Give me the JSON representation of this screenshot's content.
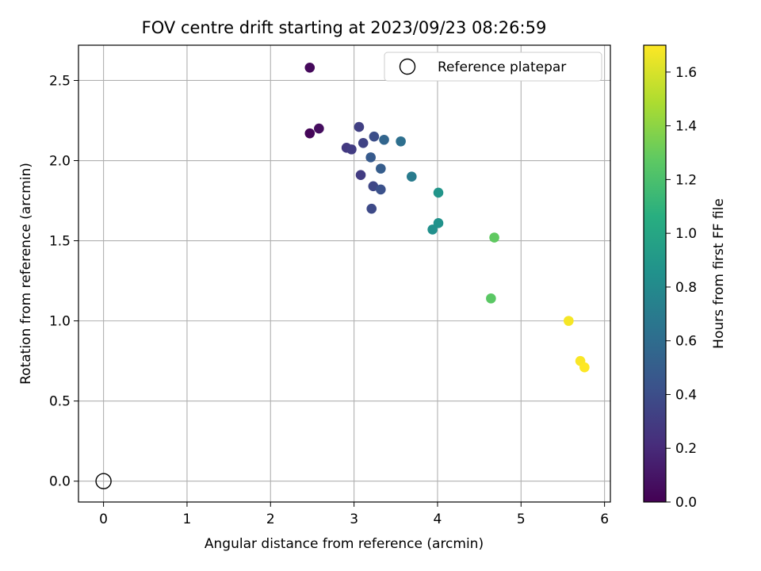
{
  "chart_data": {
    "type": "scatter",
    "title": "FOV centre drift starting at 2023/09/23 08:26:59",
    "xlabel": "Angular distance from reference (arcmin)",
    "ylabel": "Rotation from reference (arcmin)",
    "xlim": [
      -0.3,
      6.07
    ],
    "ylim": [
      -0.13,
      2.72
    ],
    "xticks": [
      0,
      1,
      2,
      3,
      4,
      5,
      6
    ],
    "yticks": [
      0.0,
      0.5,
      1.0,
      1.5,
      2.0,
      2.5
    ],
    "xtick_labels": [
      "0",
      "1",
      "2",
      "3",
      "4",
      "5",
      "6"
    ],
    "ytick_labels": [
      "0.0",
      "0.5",
      "1.0",
      "1.5",
      "2.0",
      "2.5"
    ],
    "grid": true,
    "legend": {
      "placement": "top-right",
      "entries": [
        {
          "label": "Reference platepar",
          "marker": "open-circle",
          "color": "#000000"
        }
      ]
    },
    "reference_point": {
      "x": 0,
      "y": 0
    },
    "colorbar": {
      "label": "Hours from first FF file",
      "colormap": "viridis",
      "range": [
        0.0,
        1.7
      ],
      "ticks": [
        0.0,
        0.2,
        0.4,
        0.6,
        0.8,
        1.0,
        1.2,
        1.4,
        1.6
      ],
      "tick_labels": [
        "0.0",
        "0.2",
        "0.4",
        "0.6",
        "0.8",
        "1.0",
        "1.2",
        "1.4",
        "1.6"
      ]
    },
    "points": [
      {
        "x": 2.47,
        "y": 2.58,
        "c": 0.04
      },
      {
        "x": 2.47,
        "y": 2.17,
        "c": 0.02
      },
      {
        "x": 2.58,
        "y": 2.2,
        "c": 0.06
      },
      {
        "x": 2.91,
        "y": 2.08,
        "c": 0.28
      },
      {
        "x": 2.97,
        "y": 2.07,
        "c": 0.3
      },
      {
        "x": 3.06,
        "y": 2.21,
        "c": 0.32
      },
      {
        "x": 3.11,
        "y": 2.11,
        "c": 0.34
      },
      {
        "x": 3.24,
        "y": 2.15,
        "c": 0.4
      },
      {
        "x": 3.36,
        "y": 2.13,
        "c": 0.55
      },
      {
        "x": 3.56,
        "y": 2.12,
        "c": 0.62
      },
      {
        "x": 3.2,
        "y": 2.02,
        "c": 0.48
      },
      {
        "x": 3.32,
        "y": 1.95,
        "c": 0.5
      },
      {
        "x": 3.08,
        "y": 1.91,
        "c": 0.3
      },
      {
        "x": 3.69,
        "y": 1.9,
        "c": 0.7
      },
      {
        "x": 3.23,
        "y": 1.84,
        "c": 0.36
      },
      {
        "x": 3.32,
        "y": 1.82,
        "c": 0.42
      },
      {
        "x": 4.01,
        "y": 1.8,
        "c": 0.88
      },
      {
        "x": 3.21,
        "y": 1.7,
        "c": 0.38
      },
      {
        "x": 4.01,
        "y": 1.61,
        "c": 0.86
      },
      {
        "x": 3.94,
        "y": 1.57,
        "c": 0.84
      },
      {
        "x": 4.68,
        "y": 1.52,
        "c": 1.28
      },
      {
        "x": 4.64,
        "y": 1.14,
        "c": 1.26
      },
      {
        "x": 5.57,
        "y": 1.0,
        "c": 1.68
      },
      {
        "x": 5.71,
        "y": 0.75,
        "c": 1.69
      },
      {
        "x": 5.76,
        "y": 0.71,
        "c": 1.7
      }
    ]
  }
}
